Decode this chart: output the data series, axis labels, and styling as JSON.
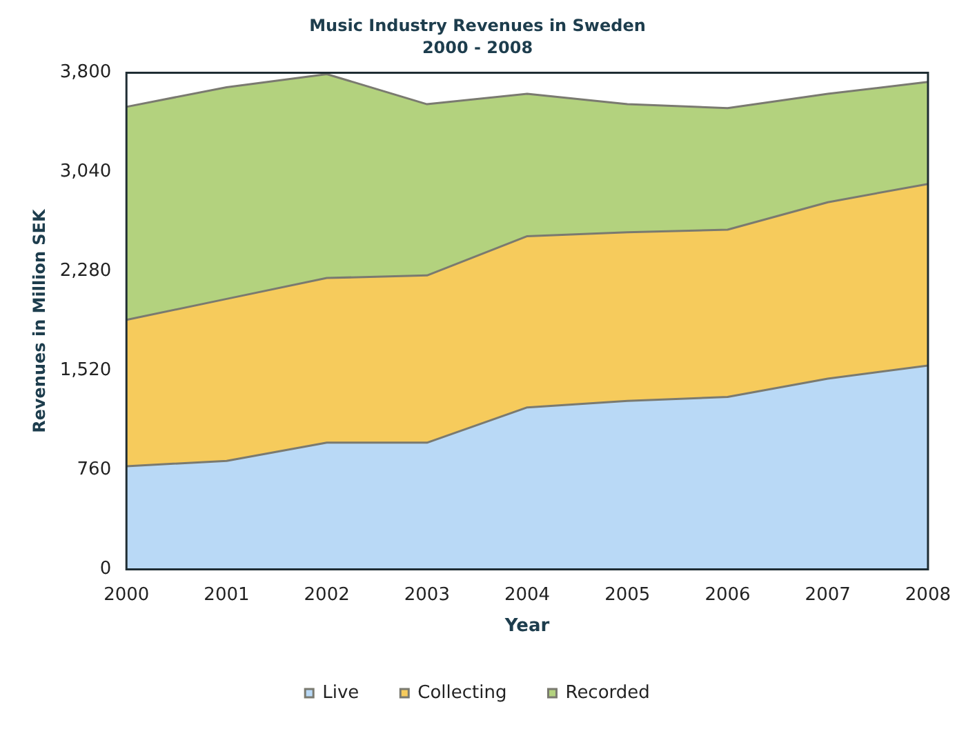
{
  "chart_data": {
    "type": "area",
    "title": "Music Industry Revenues in Sweden",
    "subtitle": "2000 - 2008",
    "xlabel": "Year",
    "ylabel": "Revenues in Million SEK",
    "stacked": true,
    "categories": [
      "2000",
      "2001",
      "2002",
      "2003",
      "2004",
      "2005",
      "2006",
      "2007",
      "2008"
    ],
    "series": [
      {
        "name": "Live",
        "color": "#b9d9f6",
        "values": [
          790,
          830,
          970,
          970,
          1240,
          1290,
          1320,
          1460,
          1560
        ]
      },
      {
        "name": "Collecting",
        "color": "#f6cb5c",
        "values": [
          1120,
          1240,
          1260,
          1280,
          1310,
          1290,
          1280,
          1350,
          1390
        ]
      },
      {
        "name": "Recorded",
        "color": "#b3d27e",
        "values": [
          1630,
          1620,
          1560,
          1310,
          1090,
          980,
          930,
          830,
          780
        ]
      }
    ],
    "ylim": [
      0,
      3800
    ],
    "yticks": [
      {
        "value": 0,
        "label": "0"
      },
      {
        "value": 760,
        "label": "760"
      },
      {
        "value": 1520,
        "label": "1,520"
      },
      {
        "value": 2280,
        "label": "2,280"
      },
      {
        "value": 3040,
        "label": "3,040"
      },
      {
        "value": 3800,
        "label": "3,800"
      }
    ],
    "grid": false,
    "legend": "bottom",
    "marker": "none",
    "line_style": "solid"
  }
}
